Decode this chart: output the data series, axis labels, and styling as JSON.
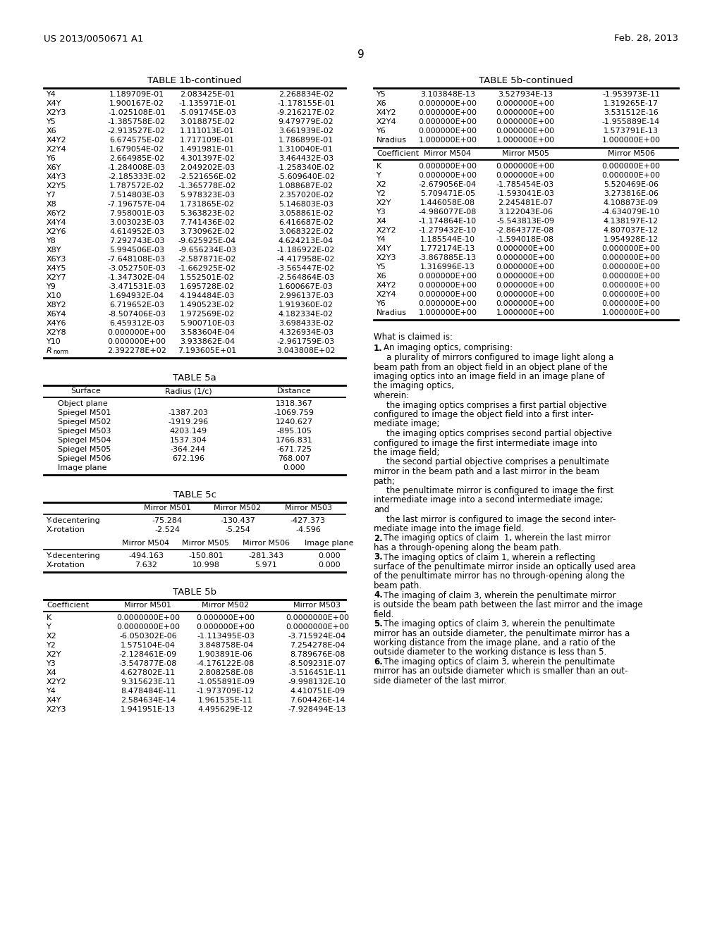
{
  "header_left": "US 2013/0050671 A1",
  "header_right": "Feb. 28, 2013",
  "page_number": "9",
  "table1b_title": "TABLE 1b-continued",
  "table1b_rows": [
    [
      "Y4",
      "1.189709E-01",
      "2.083425E-01",
      "2.268834E-02"
    ],
    [
      "X4Y",
      "1.900167E-02",
      "-1.135971E-01",
      "-1.178155E-01"
    ],
    [
      "X2Y3",
      "-1.025108E-01",
      "-5.091745E-03",
      "-9.216217E-02"
    ],
    [
      "Y5",
      "-1.385758E-02",
      "3.018875E-02",
      "9.479779E-02"
    ],
    [
      "X6",
      "-2.913527E-02",
      "1.111013E-01",
      "3.661939E-02"
    ],
    [
      "X4Y2",
      "6.674575E-02",
      "1.717109E-01",
      "1.786899E-01"
    ],
    [
      "X2Y4",
      "1.679054E-02",
      "1.491981E-01",
      "1.310040E-01"
    ],
    [
      "Y6",
      "2.664985E-02",
      "4.301397E-02",
      "3.464432E-03"
    ],
    [
      "X6Y",
      "-1.284008E-03",
      "2.049202E-03",
      "-1.258340E-02"
    ],
    [
      "X4Y3",
      "-2.185333E-02",
      "-2.521656E-02",
      "-5.609640E-02"
    ],
    [
      "X2Y5",
      "1.787572E-02",
      "-1.365778E-02",
      "1.088687E-02"
    ],
    [
      "Y7",
      "7.514803E-03",
      "5.978323E-03",
      "2.357020E-02"
    ],
    [
      "X8",
      "-7.196757E-04",
      "1.731865E-02",
      "5.146803E-03"
    ],
    [
      "X6Y2",
      "7.958001E-03",
      "5.363823E-02",
      "3.058861E-02"
    ],
    [
      "X4Y4",
      "3.003023E-03",
      "7.741436E-02",
      "6.416687E-02"
    ],
    [
      "X2Y6",
      "4.614952E-03",
      "3.730962E-02",
      "3.068322E-02"
    ],
    [
      "Y8",
      "7.292743E-03",
      "-9.625925E-04",
      "4.624213E-04"
    ],
    [
      "X8Y",
      "5.994506E-03",
      "-9.656234E-03",
      "-1.186922E-02"
    ],
    [
      "X6Y3",
      "-7.648108E-03",
      "-2.587871E-02",
      "-4.417958E-02"
    ],
    [
      "X4Y5",
      "-3.052750E-03",
      "-1.662925E-02",
      "-3.565447E-02"
    ],
    [
      "X2Y7",
      "-1.347302E-04",
      "1.552501E-02",
      "-2.564864E-03"
    ],
    [
      "Y9",
      "-3.471531E-03",
      "1.695728E-02",
      "1.600667E-03"
    ],
    [
      "X10",
      "1.694932E-04",
      "4.194484E-03",
      "2.996137E-03"
    ],
    [
      "X8Y2",
      "6.719652E-03",
      "1.490523E-02",
      "1.919360E-02"
    ],
    [
      "X6Y4",
      "-8.507406E-03",
      "1.972569E-02",
      "4.182334E-02"
    ],
    [
      "X4Y6",
      "6.459312E-03",
      "5.900710E-03",
      "3.698433E-02"
    ],
    [
      "X2Y8",
      "0.000000E+00",
      "3.583604E-04",
      "4.326934E-03"
    ],
    [
      "Y10",
      "0.000000E+00",
      "3.933862E-04",
      "-2.961759E-03"
    ],
    [
      "R_norm",
      "2.392278E+02",
      "7.193605E+01",
      "3.043808E+02"
    ]
  ],
  "table5b_cont_title": "TABLE 5b-continued",
  "table5b_top_rows": [
    [
      "Y5",
      "3.103848E-13",
      "3.527934E-13",
      "-1.953973E-11"
    ],
    [
      "X6",
      "0.000000E+00",
      "0.000000E+00",
      "1.319265E-17"
    ],
    [
      "X4Y2",
      "0.000000E+00",
      "0.000000E+00",
      "3.531512E-16"
    ],
    [
      "X2Y4",
      "0.000000E+00",
      "0.000000E+00",
      "-1.955889E-14"
    ],
    [
      "Y6",
      "0.000000E+00",
      "0.000000E+00",
      "1.573791E-13"
    ],
    [
      "Nradius",
      "1.000000E+00",
      "1.000000E+00",
      "1.000000E+00"
    ]
  ],
  "table5b_bot_header": [
    "Coefficient",
    "Mirror M504",
    "Mirror M505",
    "Mirror M506"
  ],
  "table5b_bot_rows": [
    [
      "K",
      "0.000000E+00",
      "0.000000E+00",
      "0.000000E+00"
    ],
    [
      "Y",
      "0.000000E+00",
      "0.000000E+00",
      "0.000000E+00"
    ],
    [
      "X2",
      "-2.679056E-04",
      "-1.785454E-03",
      "5.520469E-06"
    ],
    [
      "Y2",
      "5.709471E-05",
      "-1.593041E-03",
      "3.273816E-06"
    ],
    [
      "X2Y",
      "1.446058E-08",
      "2.245481E-07",
      "4.108873E-09"
    ],
    [
      "Y3",
      "-4.986077E-08",
      "3.122043E-06",
      "-4.634079E-10"
    ],
    [
      "X4",
      "-1.174864E-10",
      "-5.543813E-09",
      "4.138197E-12"
    ],
    [
      "X2Y2",
      "-1.279432E-10",
      "-2.864377E-08",
      "4.807037E-12"
    ],
    [
      "Y4",
      "1.185544E-10",
      "-1.594018E-08",
      "1.954928E-12"
    ],
    [
      "X4Y",
      "1.772174E-13",
      "0.000000E+00",
      "0.000000E+00"
    ],
    [
      "X2Y3",
      "-3.867885E-13",
      "0.000000E+00",
      "0.000000E+00"
    ],
    [
      "Y5",
      "1.316996E-13",
      "0.000000E+00",
      "0.000000E+00"
    ],
    [
      "X6",
      "0.000000E+00",
      "0.000000E+00",
      "0.000000E+00"
    ],
    [
      "X4Y2",
      "0.000000E+00",
      "0.000000E+00",
      "0.000000E+00"
    ],
    [
      "X2Y4",
      "0.000000E+00",
      "0.000000E+00",
      "0.000000E+00"
    ],
    [
      "Y6",
      "0.000000E+00",
      "0.000000E+00",
      "0.000000E+00"
    ],
    [
      "Nradius",
      "1.000000E+00",
      "1.000000E+00",
      "1.000000E+00"
    ]
  ],
  "table5a_title": "TABLE 5a",
  "table5a_cols": [
    "Surface",
    "Radius (1/c)",
    "Distance"
  ],
  "table5a_rows": [
    [
      "Object plane",
      "",
      "1318.367"
    ],
    [
      "Spiegel M501",
      "-1387.203",
      "-1069.759"
    ],
    [
      "Spiegel M502",
      "-1919.296",
      "1240.627"
    ],
    [
      "Spiegel M503",
      "4203.149",
      "-895.105"
    ],
    [
      "Spiegel M504",
      "1537.304",
      "1766.831"
    ],
    [
      "Spiegel M505",
      "-364.244",
      "-671.725"
    ],
    [
      "Spiegel M506",
      "672.196",
      "768.007"
    ],
    [
      "Image plane",
      "",
      "0.000"
    ]
  ],
  "table5c_title": "TABLE 5c",
  "table5c_top_header": [
    "",
    "Mirror M501",
    "Mirror M502",
    "Mirror M503"
  ],
  "table5c_top_rows": [
    [
      "Y-decentering",
      "-75.284",
      "-130.437",
      "-427.373"
    ],
    [
      "X-rotation",
      "-2.524",
      "-5.254",
      "-4.596"
    ]
  ],
  "table5c_bot_header": [
    "",
    "Mirror M504",
    "Mirror M505",
    "Mirror M506",
    "Image plane"
  ],
  "table5c_bot_rows": [
    [
      "Y-decentering",
      "-494.163",
      "-150.801",
      "-281.343",
      "0.000"
    ],
    [
      "X-rotation",
      "7.632",
      "10.998",
      "5.971",
      "0.000"
    ]
  ],
  "table5b2_title": "TABLE 5b",
  "table5b2_header": [
    "Coefficient",
    "Mirror M501",
    "Mirror M502",
    "Mirror M503"
  ],
  "table5b2_rows": [
    [
      "K",
      "0.0000000E+00",
      "0.000000E+00",
      "0.0000000E+00"
    ],
    [
      "Y",
      "0.0000000E+00",
      "0.000000E+00",
      "0.0000000E+00"
    ],
    [
      "X2",
      "-6.050302E-06",
      "-1.113495E-03",
      "-3.715924E-04"
    ],
    [
      "Y2",
      "1.575104E-04",
      "3.848758E-04",
      "7.254278E-04"
    ],
    [
      "X2Y",
      "-2.128461E-09",
      "1.903891E-06",
      "8.789676E-08"
    ],
    [
      "Y3",
      "-3.547877E-08",
      "-4.176122E-08",
      "-8.509231E-07"
    ],
    [
      "X4",
      "4.627802E-11",
      "2.808258E-08",
      "-3.516451E-11"
    ],
    [
      "X2Y2",
      "9.315623E-11",
      "-1.055891E-09",
      "-9.998132E-10"
    ],
    [
      "Y4",
      "8.478484E-11",
      "-1.973709E-12",
      "4.410751E-09"
    ],
    [
      "X4Y",
      "2.584634E-14",
      "1.961535E-11",
      "7.604426E-14"
    ],
    [
      "X2Y3",
      "1.941951E-13",
      "4.495629E-12",
      "-7.928494E-13"
    ]
  ],
  "claims": [
    {
      "type": "header",
      "text": "What is claimed is:"
    },
    {
      "type": "claim",
      "num": "1.",
      "text": "An imaging optics, comprising:"
    },
    {
      "type": "indent",
      "text": "a plurality of mirrors configured to image light along a"
    },
    {
      "type": "cont",
      "text": "beam path from an object field in an object plane of the"
    },
    {
      "type": "cont",
      "text": "imaging optics into an image field in an image plane of"
    },
    {
      "type": "cont",
      "text": "the imaging optics,"
    },
    {
      "type": "body",
      "text": "wherein:"
    },
    {
      "type": "indent",
      "text": "the imaging optics comprises a first partial objective"
    },
    {
      "type": "cont",
      "text": "configured to image the object field into a first inter-"
    },
    {
      "type": "cont",
      "text": "mediate image;"
    },
    {
      "type": "indent",
      "text": "the imaging optics comprises second partial objective"
    },
    {
      "type": "cont",
      "text": "configured to image the first intermediate image into"
    },
    {
      "type": "cont",
      "text": "the image field;"
    },
    {
      "type": "indent",
      "text": "the second partial objective comprises a penultimate"
    },
    {
      "type": "cont",
      "text": "mirror in the beam path and a last mirror in the beam"
    },
    {
      "type": "cont",
      "text": "path;"
    },
    {
      "type": "indent",
      "text": "the penultimate mirror is configured to image the first"
    },
    {
      "type": "cont",
      "text": "intermediate image into a second intermediate image;"
    },
    {
      "type": "cont",
      "text": "and"
    },
    {
      "type": "indent",
      "text": "the last mirror is configured to image the second inter-"
    },
    {
      "type": "cont",
      "text": "mediate image into the image field."
    },
    {
      "type": "claim",
      "num": "2.",
      "text": "The imaging optics of claim  1, wherein the last mirror"
    },
    {
      "type": "cont",
      "text": "has a through-opening along the beam path."
    },
    {
      "type": "claim",
      "num": "3.",
      "text": "The imaging optics of claim 1, wherein a reflecting"
    },
    {
      "type": "cont",
      "text": "surface of the penultimate mirror inside an optically used area"
    },
    {
      "type": "cont",
      "text": "of the penultimate mirror has no through-opening along the"
    },
    {
      "type": "cont",
      "text": "beam path."
    },
    {
      "type": "claim",
      "num": "4.",
      "text": "The imaging of claim 3, wherein the penultimate mirror"
    },
    {
      "type": "cont",
      "text": "is outside the beam path between the last mirror and the image"
    },
    {
      "type": "cont",
      "text": "field."
    },
    {
      "type": "claim",
      "num": "5.",
      "text": "The imaging optics of claim 3, wherein the penultimate"
    },
    {
      "type": "cont",
      "text": "mirror has an outside diameter, the penultimate mirror has a"
    },
    {
      "type": "cont",
      "text": "working distance from the image plane, and a ratio of the"
    },
    {
      "type": "cont",
      "text": "outside diameter to the working distance is less than 5."
    },
    {
      "type": "claim",
      "num": "6.",
      "text": "The imaging optics of claim 3, wherein the penultimate"
    },
    {
      "type": "cont",
      "text": "mirror has an outside diameter which is smaller than an out-"
    },
    {
      "type": "cont",
      "text": "side diameter of the last mirror."
    }
  ]
}
